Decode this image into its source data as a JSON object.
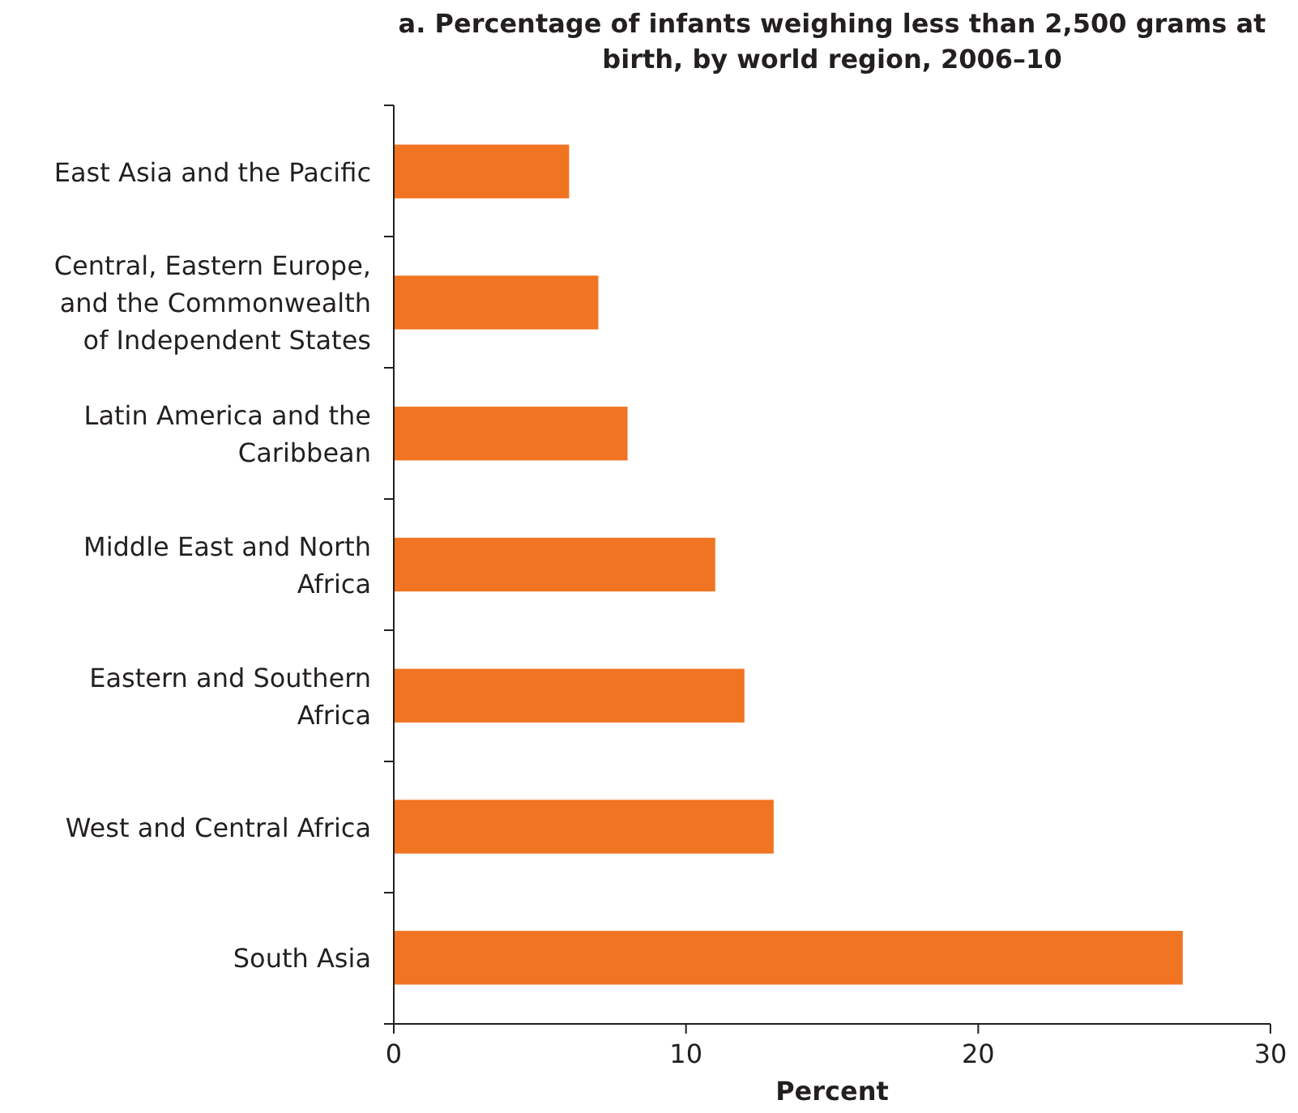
{
  "chart_data": {
    "type": "bar",
    "orientation": "horizontal",
    "title": "a. Percentage of infants weighing less than 2,500 grams at birth, by world region, 2006–10",
    "xlabel": "Percent",
    "categories": [
      "East Asia and the Pacific",
      "Central, Eastern Europe, and the Commonwealth of Independent States",
      "Latin America and the Caribbean",
      "Middle East and North Africa",
      "Eastern and Southern Africa",
      "West and Central Africa",
      "South Asia"
    ],
    "values": [
      6,
      7,
      8,
      11,
      12,
      13,
      27
    ],
    "color": "#f07422",
    "xlim": [
      0,
      30
    ],
    "xticks": [
      0,
      10,
      20,
      30
    ],
    "grid": false
  }
}
